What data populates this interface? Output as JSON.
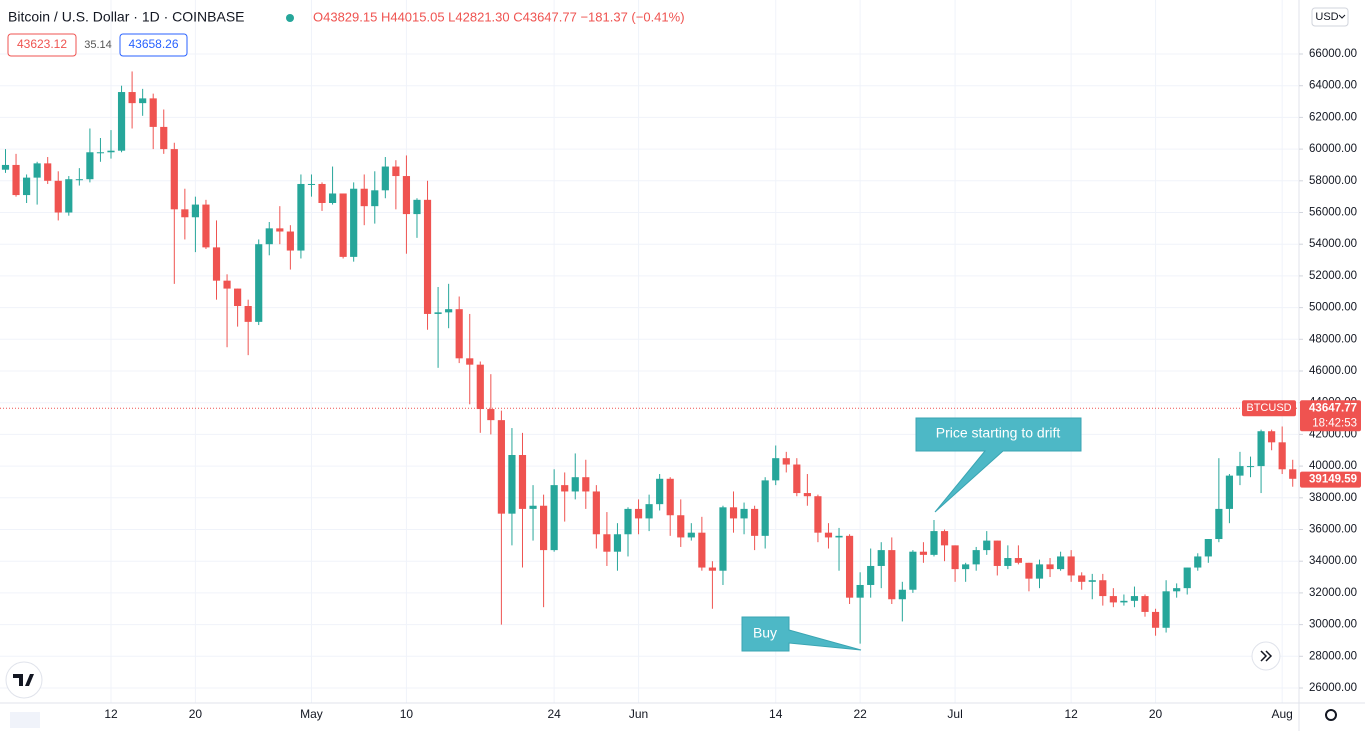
{
  "header": {
    "symbol": "Bitcoin / U.S. Dollar · 1D · COINBASE",
    "ohlc": "O43829.15 H44015.05 L42821.30 C43647.77 −181.37 (−0.41%)",
    "bid": "43623.12",
    "spread": "35.14",
    "ask": "43658.26",
    "currency": "USD"
  },
  "chart_data": {
    "type": "candlestick",
    "up_color": "#26a69a",
    "down_color": "#ef5350",
    "open": [
      58700,
      59000,
      57100,
      58200,
      59100,
      58000,
      56000,
      58100,
      58100,
      59800,
      59800,
      59900,
      63600,
      62900,
      63200,
      61400,
      60000,
      56200,
      55700,
      56500,
      53800,
      51700,
      51200,
      50100,
      49100,
      54000,
      55000,
      54800,
      53600,
      57800,
      57800,
      56600,
      57200,
      53200,
      57500,
      56400,
      57400,
      58900,
      58300,
      55900,
      56800,
      49600,
      49700,
      49900,
      46800,
      46400,
      43600,
      42900,
      37000,
      40700,
      37300,
      37500,
      34700,
      38800,
      38400,
      39300,
      38400,
      35700,
      34600,
      35700,
      37300,
      36700,
      37600,
      39200,
      36900,
      35500,
      35800,
      33600,
      33400,
      37400,
      36700,
      37300,
      35600,
      39100,
      40500,
      40100,
      38300,
      38100,
      35800,
      35500,
      35600,
      31700,
      32500,
      33700,
      34700,
      31600,
      32200,
      34600,
      34400,
      35900,
      35000,
      33500,
      33800,
      34700,
      35300,
      33700,
      34200,
      33900,
      32900,
      33800,
      33500,
      34300,
      33100,
      32700,
      32800,
      31800,
      31400,
      31500,
      31800,
      30800,
      29800,
      32100,
      32300,
      33600,
      34300,
      35400,
      37300,
      39400,
      40000,
      40000,
      42200,
      41500,
      39800
    ],
    "high": [
      60000,
      59700,
      58400,
      59200,
      59500,
      58600,
      58300,
      58800,
      61300,
      60700,
      61200,
      64000,
      64900,
      63800,
      63500,
      62500,
      60400,
      57500,
      57000,
      56800,
      55500,
      52100,
      51200,
      50500,
      54300,
      55400,
      56400,
      55200,
      58400,
      58400,
      57900,
      58900,
      57200,
      57900,
      58400,
      58600,
      59500,
      59300,
      59600,
      56900,
      58000,
      51300,
      51500,
      50700,
      49600,
      46600,
      45800,
      43500,
      42400,
      42100,
      38800,
      38200,
      39800,
      39600,
      40800,
      40400,
      38800,
      37100,
      36400,
      37400,
      37900,
      38200,
      39500,
      39300,
      37900,
      36400,
      36800,
      34000,
      37500,
      38400,
      37700,
      37500,
      39300,
      41300,
      40900,
      40500,
      39500,
      38200,
      36400,
      36100,
      35700,
      33300,
      34800,
      35200,
      35500,
      32700,
      34700,
      35200,
      36600,
      36000,
      35000,
      33900,
      34900,
      35900,
      35300,
      35000,
      35000,
      33900,
      34100,
      34200,
      34600,
      34700,
      33300,
      33200,
      33200,
      32300,
      31900,
      32400,
      31900,
      31000,
      32800,
      32600,
      33600,
      34500,
      35400,
      40500,
      39500,
      40900,
      40600,
      42300,
      42300,
      42500,
      40400
    ],
    "low": [
      58500,
      57000,
      56600,
      56500,
      57800,
      55500,
      55800,
      57700,
      57900,
      59200,
      59400,
      59800,
      61300,
      62100,
      60000,
      59700,
      51500,
      54300,
      53500,
      53700,
      50500,
      47500,
      48800,
      47000,
      48900,
      53300,
      54000,
      52400,
      53100,
      57000,
      56100,
      56500,
      53100,
      52900,
      55200,
      55300,
      56900,
      56200,
      53400,
      54400,
      48600,
      46200,
      48700,
      46500,
      43900,
      42100,
      42000,
      30000,
      35000,
      33600,
      35300,
      31100,
      34600,
      36500,
      37900,
      37300,
      34800,
      33700,
      33400,
      34300,
      35700,
      35900,
      37200,
      35600,
      34900,
      35300,
      33400,
      31000,
      32500,
      35800,
      35700,
      34700,
      34800,
      38800,
      39600,
      38100,
      37500,
      35200,
      34800,
      33400,
      31300,
      28800,
      31700,
      32300,
      31300,
      30200,
      32000,
      33900,
      34300,
      34000,
      32700,
      32700,
      33400,
      34400,
      33100,
      33500,
      33800,
      32100,
      32300,
      33000,
      33400,
      32700,
      32200,
      31600,
      31200,
      31100,
      31200,
      31100,
      30500,
      29300,
      29500,
      31700,
      31900,
      33400,
      33900,
      35200,
      36400,
      38800,
      39300,
      38300,
      41000,
      39500,
      38700
    ],
    "close": [
      59000,
      57100,
      58200,
      59100,
      58000,
      56000,
      58100,
      58100,
      59800,
      59800,
      59900,
      63600,
      62900,
      63200,
      61400,
      60000,
      56200,
      55700,
      56500,
      53800,
      51700,
      51200,
      50100,
      49100,
      54000,
      55000,
      54800,
      53600,
      57800,
      57800,
      56600,
      57200,
      53200,
      57500,
      56400,
      57400,
      58900,
      58300,
      55900,
      56800,
      49600,
      49700,
      49900,
      46800,
      46400,
      43600,
      42900,
      37000,
      40700,
      37300,
      37500,
      34700,
      38800,
      38400,
      39300,
      38400,
      35700,
      34600,
      35700,
      37300,
      36700,
      37600,
      39200,
      36900,
      35500,
      35800,
      33600,
      33400,
      37400,
      36700,
      37300,
      35600,
      39100,
      40500,
      40100,
      38300,
      38100,
      35800,
      35500,
      35600,
      31700,
      32500,
      33700,
      34700,
      31600,
      32200,
      34600,
      34400,
      35900,
      35000,
      33500,
      33800,
      34700,
      35300,
      33700,
      34200,
      33900,
      32900,
      33800,
      33500,
      34300,
      33100,
      32700,
      32800,
      31800,
      31400,
      31500,
      31800,
      30800,
      29800,
      32100,
      32300,
      33600,
      34300,
      35400,
      37300,
      39400,
      40000,
      40000,
      42200,
      41500,
      39800,
      39200
    ],
    "ylim": [
      25054,
      69407
    ],
    "yticks": [
      {
        "value": 26000,
        "label": "26000.00"
      },
      {
        "value": 28000,
        "label": "28000.00"
      },
      {
        "value": 30000,
        "label": "30000.00"
      },
      {
        "value": 32000,
        "label": "32000.00"
      },
      {
        "value": 34000,
        "label": "34000.00"
      },
      {
        "value": 36000,
        "label": "36000.00"
      },
      {
        "value": 38000,
        "label": "38000.00"
      },
      {
        "value": 40000,
        "label": "40000.00"
      },
      {
        "value": 42000,
        "label": "42000.00"
      },
      {
        "value": 44000,
        "label": "44000.00"
      },
      {
        "value": 46000,
        "label": "46000.00"
      },
      {
        "value": 48000,
        "label": "48000.00"
      },
      {
        "value": 50000,
        "label": "50000.00"
      },
      {
        "value": 52000,
        "label": "52000.00"
      },
      {
        "value": 54000,
        "label": "54000.00"
      },
      {
        "value": 56000,
        "label": "56000.00"
      },
      {
        "value": 58000,
        "label": "58000.00"
      },
      {
        "value": 60000,
        "label": "60000.00"
      },
      {
        "value": 62000,
        "label": "62000.00"
      },
      {
        "value": 64000,
        "label": "64000.00"
      },
      {
        "value": 66000,
        "label": "66000.00"
      }
    ],
    "xlim": [
      -0.52,
      122.5
    ],
    "xticks": [
      {
        "value": 10,
        "label": "12"
      },
      {
        "value": 18,
        "label": "20"
      },
      {
        "value": 29,
        "label": "May"
      },
      {
        "value": 38,
        "label": "10"
      },
      {
        "value": 52,
        "label": "24"
      },
      {
        "value": 60,
        "label": "Jun"
      },
      {
        "value": 73,
        "label": "14"
      },
      {
        "value": 81,
        "label": "22"
      },
      {
        "value": 90,
        "label": "Jul"
      },
      {
        "value": 101,
        "label": "12"
      },
      {
        "value": 109,
        "label": "20"
      },
      {
        "value": 121,
        "label": "Aug"
      }
    ],
    "grid": true,
    "last_price": 43647.77,
    "symbol_label": "BTCUSD",
    "countdown": "18:42:53",
    "price_marker": 39149.59,
    "annotations": [
      "Price starting to drift",
      "Buy"
    ]
  }
}
